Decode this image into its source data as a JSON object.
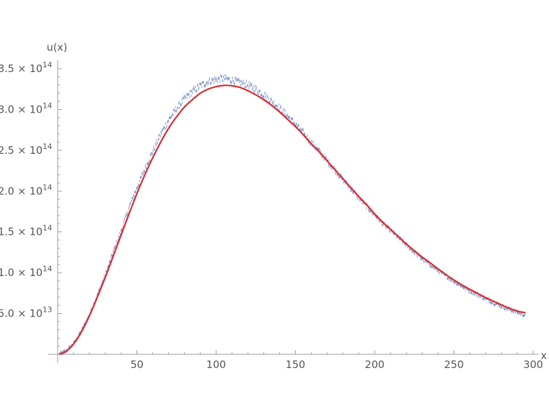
{
  "chart_data": {
    "type": "scatter",
    "title": "",
    "xlabel": "x",
    "ylabel": "u(x)",
    "xlim": [
      0,
      300
    ],
    "ylim": [
      0,
      350000000000000
    ],
    "grid": false,
    "x_ticks": [
      {
        "value": 50,
        "label": "50"
      },
      {
        "value": 100,
        "label": "100"
      },
      {
        "value": 150,
        "label": "150"
      },
      {
        "value": 200,
        "label": "200"
      },
      {
        "value": 250,
        "label": "250"
      },
      {
        "value": 300,
        "label": "300"
      }
    ],
    "y_ticks": [
      {
        "value": 50000000000000,
        "mantissa": "5.0",
        "exponent": "13"
      },
      {
        "value": 100000000000000,
        "mantissa": "1.0",
        "exponent": "14"
      },
      {
        "value": 150000000000000,
        "mantissa": "1.5",
        "exponent": "14"
      },
      {
        "value": 200000000000000,
        "mantissa": "2.0",
        "exponent": "14"
      },
      {
        "value": 250000000000000,
        "mantissa": "2.5",
        "exponent": "14"
      },
      {
        "value": 300000000000000,
        "mantissa": "3.0",
        "exponent": "14"
      },
      {
        "value": 350000000000000,
        "mantissa": "3.5",
        "exponent": "14"
      }
    ],
    "times_symbol": "×",
    "series": [
      {
        "kind": "scatter",
        "color": "#5b7db8",
        "description_source": "noisy samples scattered around the fitted curve",
        "x": [
          1,
          5,
          10,
          15,
          20,
          25,
          30,
          35,
          40,
          45,
          50,
          55,
          60,
          65,
          70,
          75,
          80,
          85,
          90,
          95,
          100,
          105,
          110,
          115,
          120,
          125,
          130,
          135,
          140,
          145,
          150,
          155,
          160,
          165,
          170,
          175,
          180,
          185,
          190,
          195,
          200,
          205,
          210,
          215,
          220,
          225,
          230,
          235,
          240,
          245,
          250,
          255,
          260,
          265,
          270,
          275,
          280,
          285,
          290,
          295
        ],
        "y": [
          300000000000.0,
          3400000000000.0,
          13000000000000.0,
          28500000000000.0,
          48500000000000.0,
          72500000000000.0,
          97000000000000.0,
          125000000000000.0,
          151000000000000.0,
          180000000000000.0,
          204000000000000.0,
          227000000000000.0,
          249000000000000.0,
          270000000000000.0,
          287000000000000.0,
          301000000000000.0,
          313000000000000.0,
          322000000000000.0,
          329000000000000.0,
          334000000000000.0,
          337000000000000.0,
          338000000000000.0,
          336000000000000.0,
          333000000000000.0,
          330000000000000.0,
          325000000000000.0,
          318000000000000.0,
          310000000000000.0,
          302000000000000.0,
          292000000000000.0,
          282000000000000.0,
          271000000000000.0,
          259000000000000.0,
          249000000000000.0,
          237000000000000.0,
          226000000000000.0,
          214000000000000.0,
          203000000000000.0,
          192000000000000.0,
          181000000000000.0,
          171000000000000.0,
          160000000000000.0,
          152000000000000.0,
          143000000000000.0,
          134000000000000.0,
          125000000000000.0,
          117000000000000.0,
          110000000000000.0,
          102500000000000.0,
          96000000000000.0,
          89500000000000.0,
          83500000000000.0,
          78000000000000.0,
          73000000000000.0,
          68000000000000.0,
          63500000000000.0,
          59000000000000.0,
          55000000000000.0,
          51500000000000.0,
          48000000000000.0
        ]
      },
      {
        "kind": "line",
        "color": "#e0242b",
        "x": [
          1,
          5,
          10,
          15,
          20,
          25,
          30,
          35,
          40,
          45,
          50,
          55,
          60,
          65,
          70,
          75,
          80,
          85,
          90,
          95,
          100,
          105,
          110,
          115,
          120,
          125,
          130,
          135,
          140,
          145,
          150,
          155,
          160,
          165,
          170,
          175,
          180,
          185,
          190,
          195,
          200,
          205,
          210,
          215,
          220,
          225,
          230,
          235,
          240,
          245,
          250,
          255,
          260,
          265,
          270,
          275,
          280,
          285,
          290,
          295
        ],
        "y": [
          300000000000.0,
          3200000000000.0,
          12500000000000.0,
          27500000000000.0,
          47000000000000.0,
          70000000000000.0,
          94000000000000.0,
          120000000000000.0,
          146000000000000.0,
          172000000000000.0,
          197000000000000.0,
          220000000000000.0,
          241000000000000.0,
          260000000000000.0,
          277000000000000.0,
          291000000000000.0,
          303000000000000.0,
          312000000000000.0,
          320000000000000.0,
          325000000000000.0,
          328000000000000.0,
          329500000000000.0,
          329000000000000.0,
          327000000000000.0,
          323000000000000.0,
          318000000000000.0,
          312000000000000.0,
          305000000000000.0,
          297000000000000.0,
          288000000000000.0,
          279000000000000.0,
          269000000000000.0,
          258000000000000.0,
          248000000000000.0,
          237000000000000.0,
          226000000000000.0,
          215000000000000.0,
          204000000000000.0,
          193000000000000.0,
          183000000000000.0,
          172000000000000.0,
          162000000000000.0,
          153000000000000.0,
          144000000000000.0,
          135000000000000.0,
          127000000000000.0,
          119000000000000.0,
          112000000000000.0,
          104500000000000.0,
          97500000000000.0,
          91000000000000.0,
          85000000000000.0,
          79500000000000.0,
          74500000000000.0,
          69500000000000.0,
          65000000000000.0,
          60500000000000.0,
          56500000000000.0,
          53000000000000.0,
          51000000000000.0
        ]
      }
    ]
  }
}
